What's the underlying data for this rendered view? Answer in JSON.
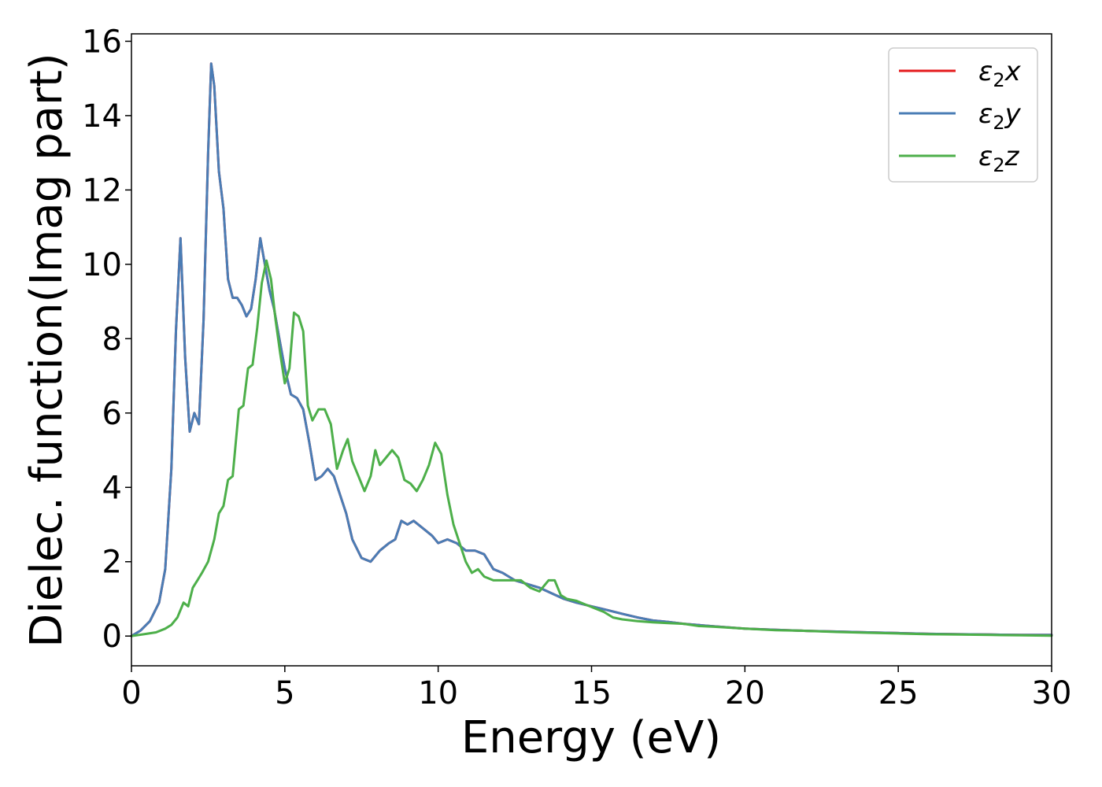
{
  "chart_data": {
    "type": "line",
    "title": "",
    "xlabel": "Energy (eV)",
    "ylabel": "Dielec. function(Imag part)",
    "xlim": [
      0,
      30
    ],
    "ylim": [
      -0.8,
      16.2
    ],
    "xticks": [
      0,
      5,
      10,
      15,
      20,
      25,
      30
    ],
    "yticks": [
      0,
      2,
      4,
      6,
      8,
      10,
      12,
      14,
      16
    ],
    "grid": false,
    "legend_position": "top-right",
    "series": [
      {
        "name": "ε₂x",
        "legend_symbol": "ε",
        "legend_sub": "2",
        "legend_var": "x",
        "color": "#e41a1c",
        "x": [
          0,
          0.3,
          0.6,
          0.9,
          1.1,
          1.3,
          1.45,
          1.6,
          1.75,
          1.9,
          2.05,
          2.2,
          2.35,
          2.5,
          2.6,
          2.7,
          2.85,
          3.0,
          3.15,
          3.3,
          3.45,
          3.6,
          3.75,
          3.9,
          4.05,
          4.2,
          4.35,
          4.5,
          4.65,
          4.8,
          5.0,
          5.2,
          5.4,
          5.6,
          5.8,
          6.0,
          6.2,
          6.4,
          6.6,
          6.8,
          7.0,
          7.2,
          7.5,
          7.8,
          8.1,
          8.4,
          8.6,
          8.8,
          9.0,
          9.2,
          9.5,
          9.8,
          10.0,
          10.3,
          10.6,
          10.9,
          11.2,
          11.5,
          11.8,
          12.1,
          12.5,
          12.9,
          13.3,
          13.7,
          14.1,
          14.5,
          15.0,
          15.5,
          16.0,
          16.5,
          17.0,
          17.5,
          18.0,
          19.0,
          20.0,
          21.0,
          22.0,
          23.0,
          24.0,
          25.0,
          26.0,
          27.0,
          28.0,
          29.0,
          30.0
        ],
        "y": [
          0,
          0.15,
          0.4,
          0.9,
          1.8,
          4.5,
          8.2,
          10.7,
          7.5,
          5.5,
          6.0,
          5.7,
          8.5,
          13.0,
          15.4,
          14.8,
          12.5,
          11.5,
          9.6,
          9.1,
          9.1,
          8.9,
          8.6,
          8.8,
          9.6,
          10.7,
          10.0,
          9.3,
          8.8,
          8.1,
          7.2,
          6.5,
          6.4,
          6.1,
          5.2,
          4.2,
          4.3,
          4.5,
          4.3,
          3.8,
          3.3,
          2.6,
          2.1,
          2.0,
          2.3,
          2.5,
          2.6,
          3.1,
          3.0,
          3.1,
          2.9,
          2.7,
          2.5,
          2.6,
          2.5,
          2.3,
          2.3,
          2.2,
          1.8,
          1.7,
          1.5,
          1.4,
          1.3,
          1.15,
          1.0,
          0.9,
          0.8,
          0.7,
          0.6,
          0.5,
          0.42,
          0.38,
          0.33,
          0.26,
          0.2,
          0.17,
          0.14,
          0.12,
          0.1,
          0.08,
          0.06,
          0.05,
          0.04,
          0.03,
          0.03
        ]
      },
      {
        "name": "ε₂y",
        "legend_symbol": "ε",
        "legend_sub": "2",
        "legend_var": "y",
        "color": "#4a7db5",
        "x": [
          0,
          0.3,
          0.6,
          0.9,
          1.1,
          1.3,
          1.45,
          1.6,
          1.75,
          1.9,
          2.05,
          2.2,
          2.35,
          2.5,
          2.6,
          2.7,
          2.85,
          3.0,
          3.15,
          3.3,
          3.45,
          3.6,
          3.75,
          3.9,
          4.05,
          4.2,
          4.35,
          4.5,
          4.65,
          4.8,
          5.0,
          5.2,
          5.4,
          5.6,
          5.8,
          6.0,
          6.2,
          6.4,
          6.6,
          6.8,
          7.0,
          7.2,
          7.5,
          7.8,
          8.1,
          8.4,
          8.6,
          8.8,
          9.0,
          9.2,
          9.5,
          9.8,
          10.0,
          10.3,
          10.6,
          10.9,
          11.2,
          11.5,
          11.8,
          12.1,
          12.5,
          12.9,
          13.3,
          13.7,
          14.1,
          14.5,
          15.0,
          15.5,
          16.0,
          16.5,
          17.0,
          17.5,
          18.0,
          19.0,
          20.0,
          21.0,
          22.0,
          23.0,
          24.0,
          25.0,
          26.0,
          27.0,
          28.0,
          29.0,
          30.0
        ],
        "y": [
          0,
          0.15,
          0.4,
          0.9,
          1.8,
          4.5,
          8.2,
          10.7,
          7.5,
          5.5,
          6.0,
          5.7,
          8.5,
          13.0,
          15.4,
          14.8,
          12.5,
          11.5,
          9.6,
          9.1,
          9.1,
          8.9,
          8.6,
          8.8,
          9.6,
          10.7,
          10.0,
          9.3,
          8.8,
          8.1,
          7.2,
          6.5,
          6.4,
          6.1,
          5.2,
          4.2,
          4.3,
          4.5,
          4.3,
          3.8,
          3.3,
          2.6,
          2.1,
          2.0,
          2.3,
          2.5,
          2.6,
          3.1,
          3.0,
          3.1,
          2.9,
          2.7,
          2.5,
          2.6,
          2.5,
          2.3,
          2.3,
          2.2,
          1.8,
          1.7,
          1.5,
          1.4,
          1.3,
          1.15,
          1.0,
          0.9,
          0.8,
          0.7,
          0.6,
          0.5,
          0.42,
          0.38,
          0.33,
          0.26,
          0.2,
          0.17,
          0.14,
          0.12,
          0.1,
          0.08,
          0.06,
          0.05,
          0.04,
          0.03,
          0.03
        ]
      },
      {
        "name": "ε₂z",
        "legend_symbol": "ε",
        "legend_sub": "2",
        "legend_var": "z",
        "color": "#4daf4a",
        "x": [
          0,
          0.4,
          0.8,
          1.1,
          1.3,
          1.5,
          1.7,
          1.85,
          2.0,
          2.15,
          2.3,
          2.5,
          2.7,
          2.85,
          3.0,
          3.15,
          3.3,
          3.5,
          3.65,
          3.8,
          3.95,
          4.1,
          4.25,
          4.4,
          4.55,
          4.7,
          4.85,
          5.0,
          5.15,
          5.3,
          5.45,
          5.6,
          5.75,
          5.9,
          6.1,
          6.3,
          6.5,
          6.7,
          6.9,
          7.05,
          7.2,
          7.4,
          7.6,
          7.8,
          7.95,
          8.1,
          8.3,
          8.5,
          8.7,
          8.9,
          9.1,
          9.3,
          9.5,
          9.7,
          9.9,
          10.1,
          10.3,
          10.5,
          10.7,
          10.9,
          11.1,
          11.3,
          11.5,
          11.8,
          12.1,
          12.4,
          12.7,
          13.0,
          13.3,
          13.6,
          13.8,
          14.0,
          14.2,
          14.5,
          14.8,
          15.1,
          15.4,
          15.7,
          16.0,
          16.5,
          17.0,
          17.5,
          18.0,
          18.5,
          19.0,
          20.0,
          21.0,
          22.0,
          23.0,
          24.0,
          25.0,
          26.0,
          27.0,
          28.0,
          29.0,
          30.0
        ],
        "y": [
          0,
          0.05,
          0.1,
          0.2,
          0.3,
          0.5,
          0.9,
          0.8,
          1.3,
          1.5,
          1.7,
          2.0,
          2.6,
          3.3,
          3.5,
          4.2,
          4.3,
          6.1,
          6.2,
          7.2,
          7.3,
          8.3,
          9.5,
          10.1,
          9.6,
          8.5,
          7.6,
          6.8,
          7.2,
          8.7,
          8.6,
          8.2,
          6.2,
          5.8,
          6.1,
          6.1,
          5.7,
          4.5,
          5.0,
          5.3,
          4.7,
          4.3,
          3.9,
          4.3,
          5.0,
          4.6,
          4.8,
          5.0,
          4.8,
          4.2,
          4.1,
          3.9,
          4.2,
          4.6,
          5.2,
          4.9,
          3.8,
          3.0,
          2.5,
          2.0,
          1.7,
          1.8,
          1.6,
          1.5,
          1.5,
          1.5,
          1.5,
          1.3,
          1.2,
          1.5,
          1.5,
          1.1,
          1.0,
          0.95,
          0.85,
          0.75,
          0.65,
          0.5,
          0.45,
          0.4,
          0.37,
          0.35,
          0.33,
          0.27,
          0.25,
          0.2,
          0.16,
          0.14,
          0.11,
          0.09,
          0.07,
          0.05,
          0.04,
          0.03,
          0.02,
          0.01
        ]
      }
    ]
  }
}
